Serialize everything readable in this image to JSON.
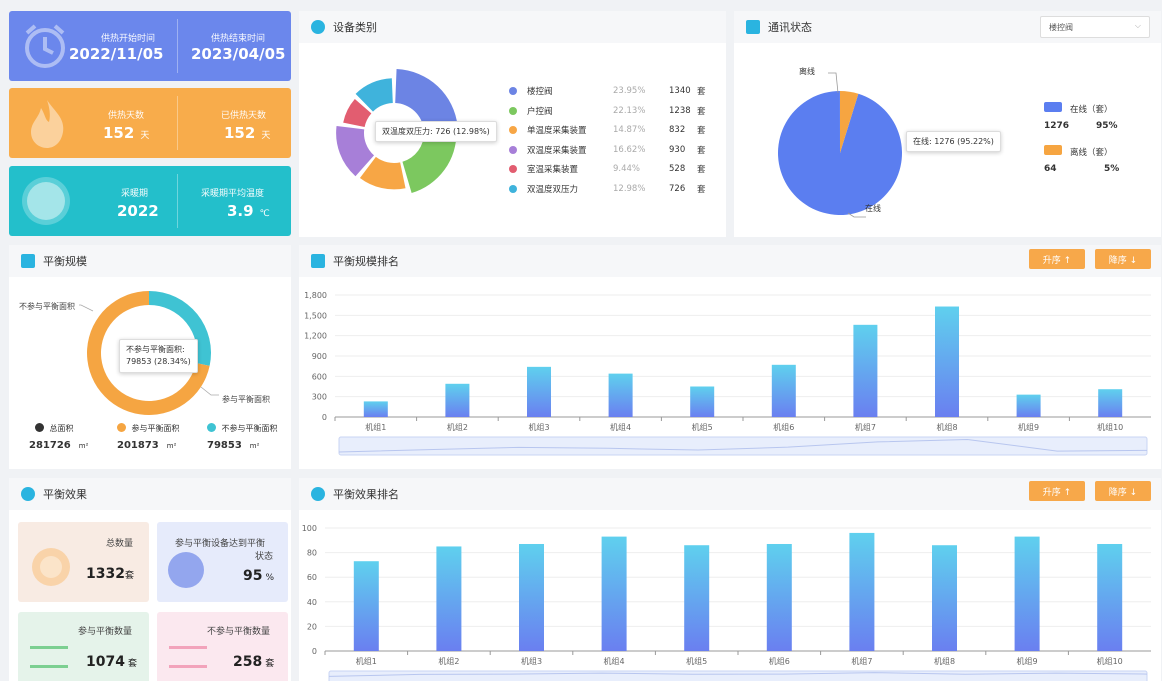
{
  "stats": {
    "start_label": "供热开始时间",
    "start_value": "2022/11/05",
    "end_label": "供热结束时间",
    "end_value": "2023/04/05",
    "days_label": "供热天数",
    "days_value": "152",
    "days_unit": "天",
    "done_label": "已供热天数",
    "done_value": "152",
    "done_unit": "天",
    "period_label": "采暖期",
    "period_value": "2022",
    "temp_label": "采暖期平均温度",
    "temp_value": "3.9",
    "temp_unit": "℃",
    "colors": {
      "blue": "#6b87ec",
      "orange": "#f8ac4b",
      "teal": "#23bfcb"
    }
  },
  "device": {
    "title": "设备类别",
    "tooltip": "双温度双压力: 726 (12.98%)",
    "items": [
      {
        "name": "楼控阀",
        "pct": "23.95%",
        "count": "1340",
        "unit": "套",
        "color": "#6c84e4"
      },
      {
        "name": "户控阀",
        "pct": "22.13%",
        "count": "1238",
        "unit": "套",
        "color": "#7cc85f"
      },
      {
        "name": "单温度采集装置",
        "pct": "14.87%",
        "count": "832",
        "unit": "套",
        "color": "#f7a645"
      },
      {
        "name": "双温度采集装置",
        "pct": "16.62%",
        "count": "930",
        "unit": "套",
        "color": "#a77fd8"
      },
      {
        "name": "室温采集装置",
        "pct": "9.44%",
        "count": "528",
        "unit": "套",
        "color": "#e25d70"
      },
      {
        "name": "双温度双压力",
        "pct": "12.98%",
        "count": "726",
        "unit": "套",
        "color": "#3fb3dc"
      }
    ]
  },
  "comm": {
    "title": "通讯状态",
    "select_value": "楼控阀",
    "offline_callout": "离线",
    "online_callout": "在线",
    "tooltip": "在线: 1276 (95.22%)",
    "online_label": "在线（套）",
    "online_count": "1276",
    "online_pct": "95%",
    "offline_label": "离线（套）",
    "offline_count": "64",
    "offline_pct": "5%",
    "online_fraction": 0.9522,
    "colors": {
      "online": "#5b7ef0",
      "offline": "#f6a541"
    }
  },
  "balance_scale": {
    "title": "平衡规模",
    "callout_not": "不参与平衡面积",
    "callout_in": "参与平衡面积",
    "tooltip_line1": "不参与平衡面积:",
    "tooltip_line2": "79853 (28.34%)",
    "legend": [
      {
        "name": "总面积",
        "value": "281726",
        "unit": "m²",
        "color": "#333333"
      },
      {
        "name": "参与平衡面积",
        "value": "201873",
        "unit": "m²",
        "color": "#f5a542"
      },
      {
        "name": "不参与平衡面积",
        "value": "79853",
        "unit": "m²",
        "color": "#3fc3d3"
      }
    ],
    "not_fraction": 0.2834
  },
  "ranking": {
    "title": "平衡规模排名",
    "asc": "升序 ↑",
    "desc": "降序 ↓"
  },
  "balance_effect": {
    "title": "平衡效果",
    "total_label": "总数量",
    "total_value": "1332",
    "total_unit": "套",
    "rate_label_1": "参与平衡设备达到平衡",
    "rate_label_2": "状态",
    "rate_value": "95",
    "rate_unit": "%",
    "in_label": "参与平衡数量",
    "in_value": "1074",
    "in_unit": "套",
    "out_label": "不参与平衡数量",
    "out_value": "258",
    "out_unit": "套"
  },
  "effect_ranking": {
    "title": "平衡效果排名",
    "asc": "升序 ↑",
    "desc": "降序 ↓"
  },
  "chart_data": [
    {
      "type": "bar",
      "title": "平衡规模排名",
      "categories": [
        "机组1",
        "机组2",
        "机组3",
        "机组4",
        "机组5",
        "机组6",
        "机组7",
        "机组8",
        "机组9",
        "机组10"
      ],
      "values": [
        230,
        490,
        740,
        640,
        450,
        770,
        1360,
        1630,
        330,
        410
      ],
      "ylim": [
        0,
        1800
      ],
      "yticks": [
        "0",
        "300",
        "600",
        "900",
        "1,200",
        "1,500",
        "1,800"
      ],
      "grid": true
    },
    {
      "type": "bar",
      "title": "平衡效果排名",
      "categories": [
        "机组1",
        "机组2",
        "机组3",
        "机组4",
        "机组5",
        "机组6",
        "机组7",
        "机组8",
        "机组9",
        "机组10"
      ],
      "values": [
        73,
        85,
        87,
        93,
        86,
        87,
        96,
        86,
        93,
        87
      ],
      "ylim": [
        0,
        100
      ],
      "yticks": [
        "0",
        "20",
        "40",
        "60",
        "80",
        "100"
      ],
      "grid": true
    }
  ]
}
